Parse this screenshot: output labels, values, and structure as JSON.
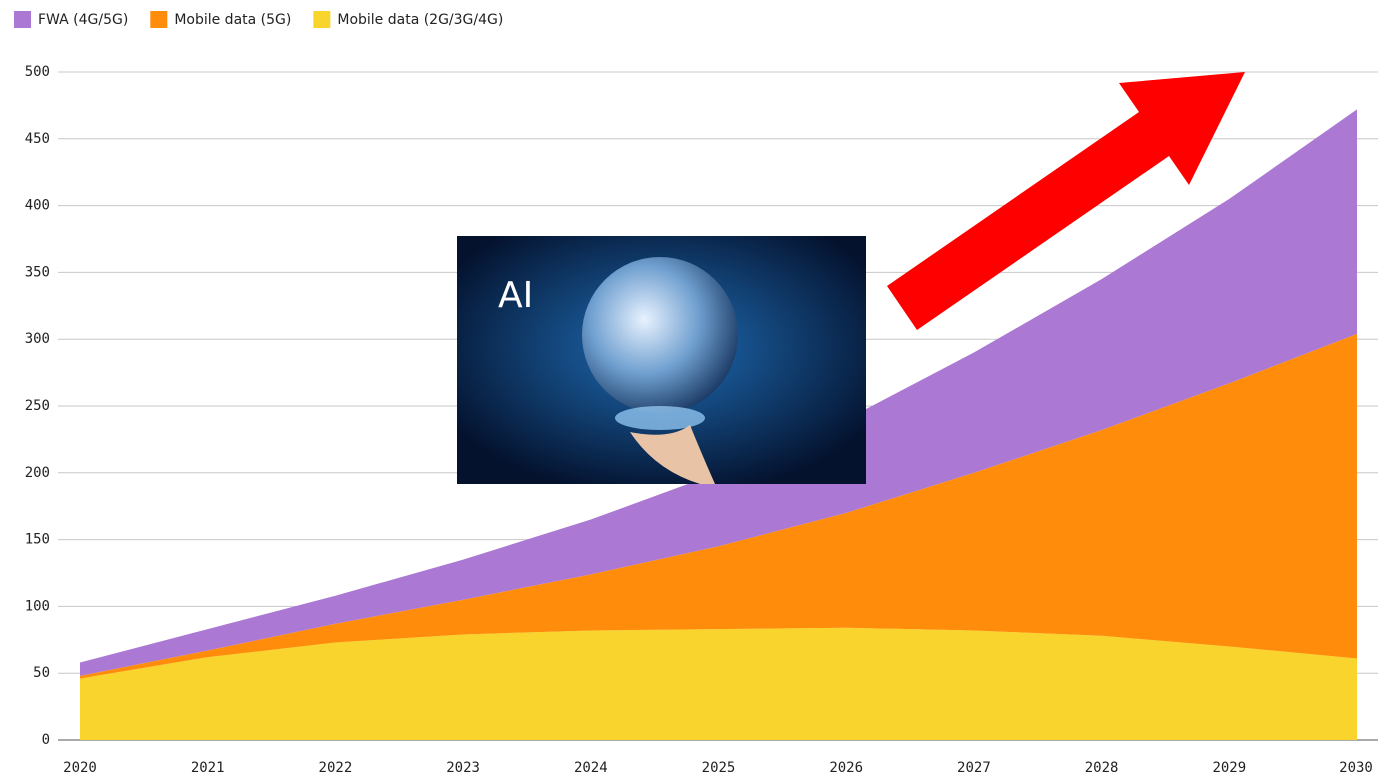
{
  "chart_data": {
    "type": "stacked_area",
    "annotation": "AI",
    "categories": [
      "2020",
      "2021",
      "2022",
      "2023",
      "2024",
      "2025",
      "2026",
      "2027",
      "2028",
      "2029",
      "2030"
    ],
    "series": [
      {
        "name": "FWA (4G/5G)",
        "color": "#ab78d3",
        "values": [
          10,
          16,
          21,
          30,
          41,
          55,
          70,
          90,
          113,
          138,
          168
        ]
      },
      {
        "name": "Mobile data (5G)",
        "color": "#ff8c0a",
        "values": [
          2,
          5,
          14,
          26,
          42,
          62,
          86,
          118,
          154,
          197,
          243
        ]
      },
      {
        "name": "Mobile data (2G/3G/4G)",
        "color": "#f8d42c",
        "values": [
          46,
          62,
          73,
          79,
          82,
          83,
          84,
          82,
          78,
          70,
          61
        ]
      }
    ],
    "ylim": [
      0,
      500
    ],
    "yticks": [
      0,
      50,
      100,
      150,
      200,
      250,
      300,
      350,
      400,
      450,
      500
    ],
    "grid": true
  }
}
